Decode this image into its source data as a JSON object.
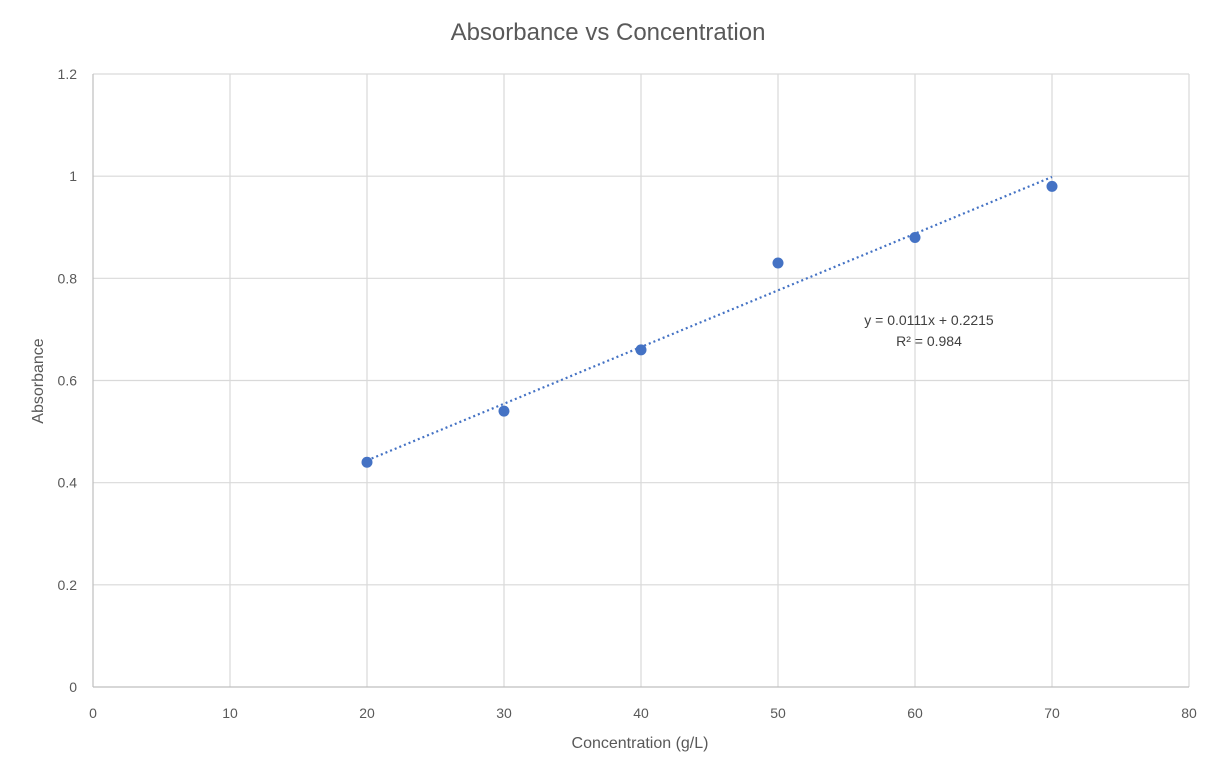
{
  "chart_data": {
    "type": "scatter",
    "title": "Absorbance vs Concentration",
    "xlabel": "Concentration (g/L)",
    "ylabel": "Absorbance",
    "xlim": [
      0,
      80
    ],
    "ylim": [
      0,
      1.2
    ],
    "x_ticks": [
      0,
      10,
      20,
      30,
      40,
      50,
      60,
      70,
      80
    ],
    "y_ticks": [
      0,
      0.2,
      0.4,
      0.6,
      0.8,
      1,
      1.2
    ],
    "x_tick_labels": [
      "0",
      "10",
      "20",
      "30",
      "40",
      "50",
      "60",
      "70",
      "80"
    ],
    "y_tick_labels": [
      "0",
      "0.2",
      "0.4",
      "0.6",
      "0.8",
      "1",
      "1.2"
    ],
    "grid": true,
    "legend": "none",
    "series": [
      {
        "x": [
          20,
          30,
          40,
          50,
          60,
          70
        ],
        "y": [
          0.44,
          0.54,
          0.66,
          0.83,
          0.88,
          0.98
        ],
        "color": "#4472C4"
      }
    ],
    "trendline": {
      "type": "linear",
      "slope": 0.0111,
      "intercept": 0.2215,
      "x_range": [
        20,
        70
      ],
      "style": "dotted",
      "color": "#4472C4",
      "equation_label": "y = 0.0111x + 0.2215",
      "r2_label": "R² = 0.984"
    }
  }
}
